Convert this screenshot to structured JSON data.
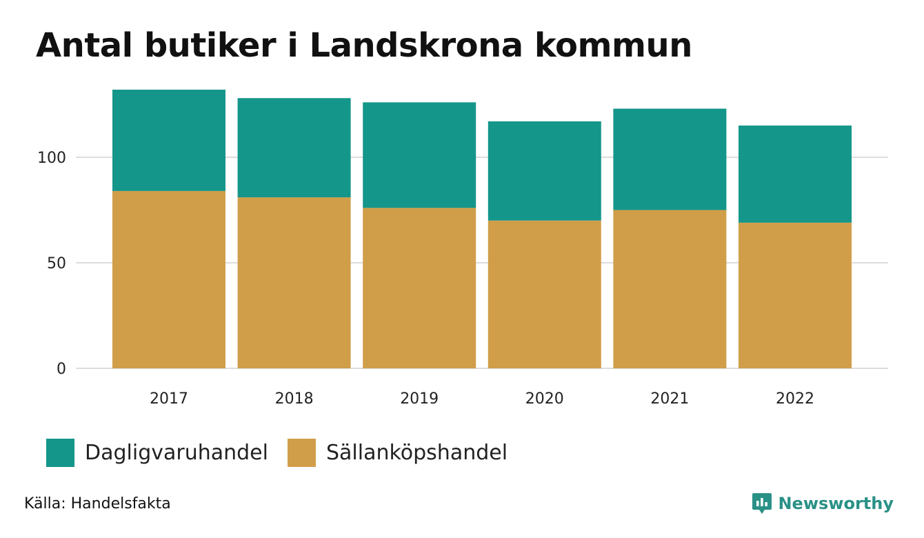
{
  "title": "Antal butiker i Landskrona kommun",
  "source": "Källa: Handelsfakta",
  "brand": {
    "name": "Newsworthy",
    "color": "#2a9187"
  },
  "legend": [
    {
      "label": "Dagligvaruhandel",
      "color": "#14968a"
    },
    {
      "label": "Sällanköpshandel",
      "color": "#d09e49"
    }
  ],
  "chart_data": {
    "type": "bar",
    "stacked": true,
    "title": "Antal butiker i Landskrona kommun",
    "xlabel": "",
    "ylabel": "",
    "categories": [
      "2017",
      "2018",
      "2019",
      "2020",
      "2021",
      "2022"
    ],
    "series": [
      {
        "name": "Sällanköpshandel",
        "color": "#d09e49",
        "values": [
          84,
          81,
          76,
          70,
          75,
          69
        ]
      },
      {
        "name": "Dagligvaruhandel",
        "color": "#14968a",
        "values": [
          48,
          47,
          50,
          47,
          48,
          46
        ]
      }
    ],
    "ylim": [
      0,
      132
    ],
    "yticks": [
      0,
      50,
      100
    ],
    "grid": true,
    "legend_position": "bottom-left"
  }
}
